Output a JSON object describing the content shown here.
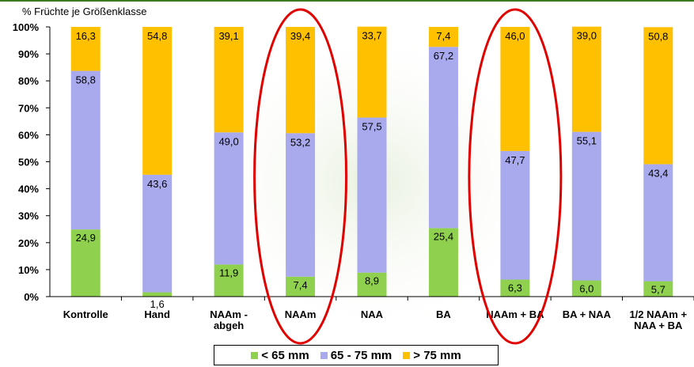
{
  "chart_data": {
    "type": "bar",
    "stacked": true,
    "ylabel": "% Früchte je Größenklasse",
    "ylim": [
      0,
      100
    ],
    "yticks": [
      "0%",
      "10%",
      "20%",
      "30%",
      "40%",
      "50%",
      "60%",
      "70%",
      "80%",
      "90%",
      "100%"
    ],
    "categories": [
      "Kontrolle",
      "Hand",
      "NAAm -\nabgeh",
      "NAAm",
      "NAA",
      "BA",
      "NAAm + BA",
      "BA + NAA",
      "1/2 NAAm +\nNAA + BA"
    ],
    "series": [
      {
        "name": "< 65 mm",
        "color": "#8fd14f",
        "values": [
          24.9,
          1.6,
          11.9,
          7.4,
          8.9,
          25.4,
          6.3,
          6.0,
          5.7
        ],
        "labels": [
          "24,9",
          "1,6",
          "11,9",
          "7,4",
          "8,9",
          "25,4",
          "6,3",
          "6,0",
          "5,7"
        ]
      },
      {
        "name": "65 - 75 mm",
        "color": "#a9a9ee",
        "values": [
          58.8,
          43.6,
          49.0,
          53.2,
          57.5,
          67.2,
          47.7,
          55.1,
          43.4
        ],
        "labels": [
          "58,8",
          "43,6",
          "49,0",
          "53,2",
          "57,5",
          "67,2",
          "47,7",
          "55,1",
          "43,4"
        ]
      },
      {
        "name": "> 75 mm",
        "color": "#ffc000",
        "values": [
          16.3,
          54.8,
          39.1,
          39.4,
          33.7,
          7.4,
          46.0,
          39.0,
          50.8
        ],
        "labels": [
          "16,3",
          "54,8",
          "39,1",
          "39,4",
          "33,7",
          "7,4",
          "46,0",
          "39,0",
          "50,8"
        ]
      }
    ],
    "highlighted_categories": [
      "NAAm",
      "NAAm + BA"
    ],
    "grid": false,
    "legend_position": "bottom"
  }
}
